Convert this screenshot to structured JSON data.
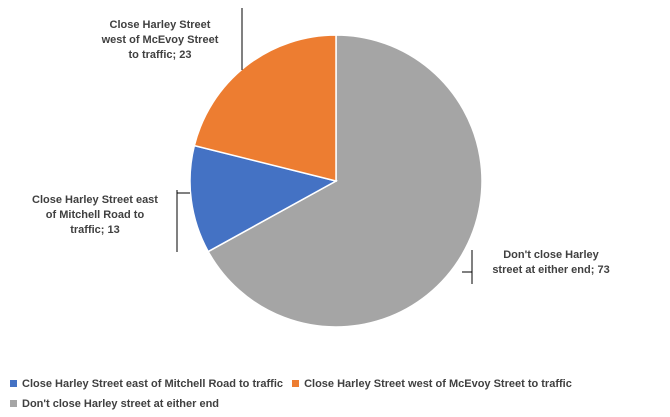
{
  "chart_data": {
    "type": "pie",
    "title": "",
    "slices": [
      {
        "label": "Close Harley Street east of Mitchell Road to traffic",
        "value": 13,
        "color": "#4472C4",
        "data_label_lines": [
          "Close Harley Street east",
          "of Mitchell Road to",
          "traffic; 13"
        ]
      },
      {
        "label": "Close Harley Street west of McEvoy Street to traffic",
        "value": 23,
        "color": "#ED7D31",
        "data_label_lines": [
          "Close Harley Street",
          "west of McEvoy Street",
          "to traffic; 23"
        ]
      },
      {
        "label": "Don't close Harley street at either end",
        "value": 73,
        "color": "#A5A5A5",
        "data_label_lines": [
          "Don't close Harley",
          "street at either end; 73"
        ]
      }
    ],
    "legend_position": "bottom"
  }
}
